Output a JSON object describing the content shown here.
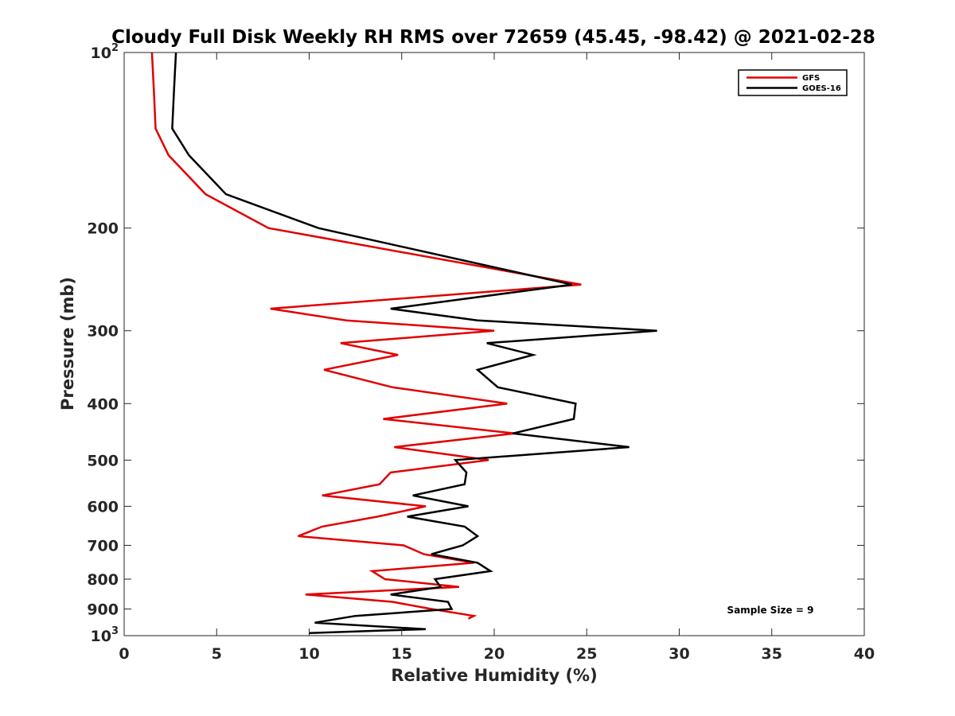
{
  "chart_data": {
    "type": "line",
    "title": "Cloudy Full Disk Weekly RH RMS over 72659 (45.45, -98.42) @ 2021-02-28",
    "xlabel": "Relative Humidity (%)",
    "ylabel": "Pressure (mb)",
    "xlim": [
      0,
      40
    ],
    "ylim": [
      100,
      1000
    ],
    "y_scale": "log",
    "y_reversed": true,
    "grid": false,
    "legend_position": "top-right",
    "x_ticks": [
      "0",
      "5",
      "10",
      "15",
      "20",
      "25",
      "30",
      "35",
      "40"
    ],
    "y_ticks": [
      {
        "value": 100,
        "base": "10",
        "exp": "2"
      },
      {
        "value": 200,
        "label": "200"
      },
      {
        "value": 300,
        "label": "300"
      },
      {
        "value": 400,
        "label": "400"
      },
      {
        "value": 500,
        "label": "500"
      },
      {
        "value": 600,
        "label": "600"
      },
      {
        "value": 700,
        "label": "700"
      },
      {
        "value": 800,
        "label": "800"
      },
      {
        "value": 900,
        "label": "900"
      },
      {
        "value": 1000,
        "base": "10",
        "exp": "3"
      }
    ],
    "annotation": "Sample Size = 9",
    "series": [
      {
        "name": "GFS",
        "color": "#e00000",
        "points": [
          [
            1.5,
            100
          ],
          [
            1.6,
            115
          ],
          [
            1.7,
            135
          ],
          [
            2.4,
            150
          ],
          [
            4.4,
            175
          ],
          [
            7.8,
            200
          ],
          [
            24.7,
            250
          ],
          [
            7.9,
            275
          ],
          [
            12.0,
            288
          ],
          [
            20.0,
            300
          ],
          [
            11.7,
            315
          ],
          [
            14.8,
            330
          ],
          [
            10.8,
            350
          ],
          [
            14.5,
            375
          ],
          [
            20.7,
            400
          ],
          [
            14.0,
            425
          ],
          [
            21.1,
            450
          ],
          [
            14.6,
            475
          ],
          [
            19.7,
            500
          ],
          [
            14.4,
            525
          ],
          [
            13.8,
            550
          ],
          [
            10.7,
            575
          ],
          [
            16.3,
            600
          ],
          [
            13.7,
            625
          ],
          [
            10.7,
            650
          ],
          [
            9.4,
            675
          ],
          [
            15.1,
            700
          ],
          [
            16.2,
            725
          ],
          [
            18.9,
            750
          ],
          [
            13.4,
            775
          ],
          [
            14.1,
            800
          ],
          [
            18.1,
            825
          ],
          [
            9.8,
            850
          ],
          [
            14.5,
            875
          ],
          [
            16.6,
            900
          ],
          [
            18.9,
            925
          ],
          [
            18.6,
            935
          ]
        ]
      },
      {
        "name": "GOES-16",
        "color": "#000000",
        "points": [
          [
            2.8,
            100
          ],
          [
            2.7,
            115
          ],
          [
            2.6,
            135
          ],
          [
            3.5,
            150
          ],
          [
            5.5,
            175
          ],
          [
            10.5,
            200
          ],
          [
            24.2,
            250
          ],
          [
            14.4,
            275
          ],
          [
            19.1,
            288
          ],
          [
            28.8,
            300
          ],
          [
            19.6,
            315
          ],
          [
            22.1,
            330
          ],
          [
            19.1,
            350
          ],
          [
            20.2,
            375
          ],
          [
            24.4,
            400
          ],
          [
            24.3,
            425
          ],
          [
            21.0,
            450
          ],
          [
            27.3,
            475
          ],
          [
            17.9,
            500
          ],
          [
            18.5,
            525
          ],
          [
            18.4,
            550
          ],
          [
            15.6,
            575
          ],
          [
            18.6,
            600
          ],
          [
            15.3,
            625
          ],
          [
            18.4,
            650
          ],
          [
            19.1,
            675
          ],
          [
            18.3,
            700
          ],
          [
            16.6,
            725
          ],
          [
            19.1,
            750
          ],
          [
            19.8,
            775
          ],
          [
            16.8,
            800
          ],
          [
            17.1,
            825
          ],
          [
            14.4,
            850
          ],
          [
            17.5,
            875
          ],
          [
            17.7,
            900
          ],
          [
            12.5,
            925
          ],
          [
            10.3,
            950
          ],
          [
            16.3,
            975
          ],
          [
            13.9,
            980
          ],
          [
            10.0,
            990
          ]
        ]
      }
    ]
  }
}
